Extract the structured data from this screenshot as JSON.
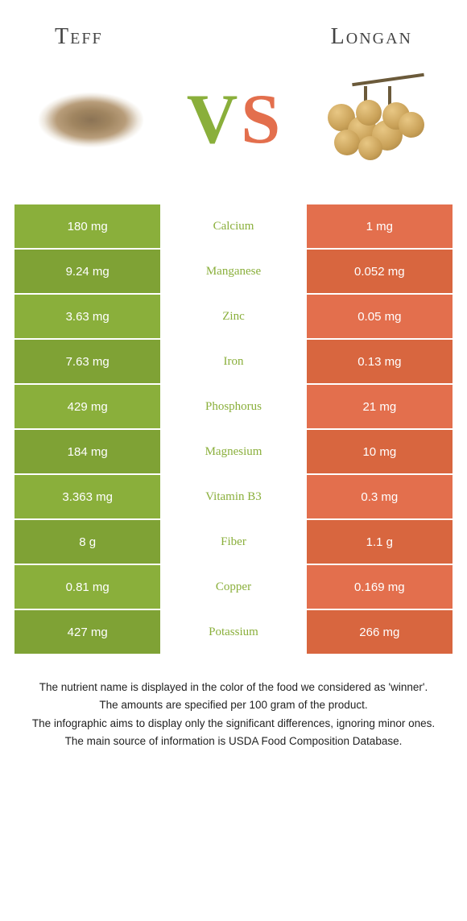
{
  "colors": {
    "left": "#8aaf3b",
    "right": "#e36f4d",
    "left_dark": "#7fa235",
    "right_dark": "#d8663f"
  },
  "foods": {
    "left_name": "Teff",
    "right_name": "Longan"
  },
  "vs": {
    "v": "V",
    "s": "S"
  },
  "rows": [
    {
      "left": "180 mg",
      "nutrient": "Calcium",
      "right": "1 mg",
      "winner": "left"
    },
    {
      "left": "9.24 mg",
      "nutrient": "Manganese",
      "right": "0.052 mg",
      "winner": "left"
    },
    {
      "left": "3.63 mg",
      "nutrient": "Zinc",
      "right": "0.05 mg",
      "winner": "left"
    },
    {
      "left": "7.63 mg",
      "nutrient": "Iron",
      "right": "0.13 mg",
      "winner": "left"
    },
    {
      "left": "429 mg",
      "nutrient": "Phosphorus",
      "right": "21 mg",
      "winner": "left"
    },
    {
      "left": "184 mg",
      "nutrient": "Magnesium",
      "right": "10 mg",
      "winner": "left"
    },
    {
      "left": "3.363 mg",
      "nutrient": "Vitamin B3",
      "right": "0.3 mg",
      "winner": "left"
    },
    {
      "left": "8 g",
      "nutrient": "Fiber",
      "right": "1.1 g",
      "winner": "left"
    },
    {
      "left": "0.81 mg",
      "nutrient": "Copper",
      "right": "0.169 mg",
      "winner": "left"
    },
    {
      "left": "427 mg",
      "nutrient": "Potassium",
      "right": "266 mg",
      "winner": "left"
    }
  ],
  "notes": [
    "The nutrient name is displayed in the color of the food we considered as 'winner'.",
    "The amounts are specified per 100 gram of the product.",
    "The infographic aims to display only the significant differences, ignoring minor ones.",
    "The main source of information is USDA Food Composition Database."
  ]
}
